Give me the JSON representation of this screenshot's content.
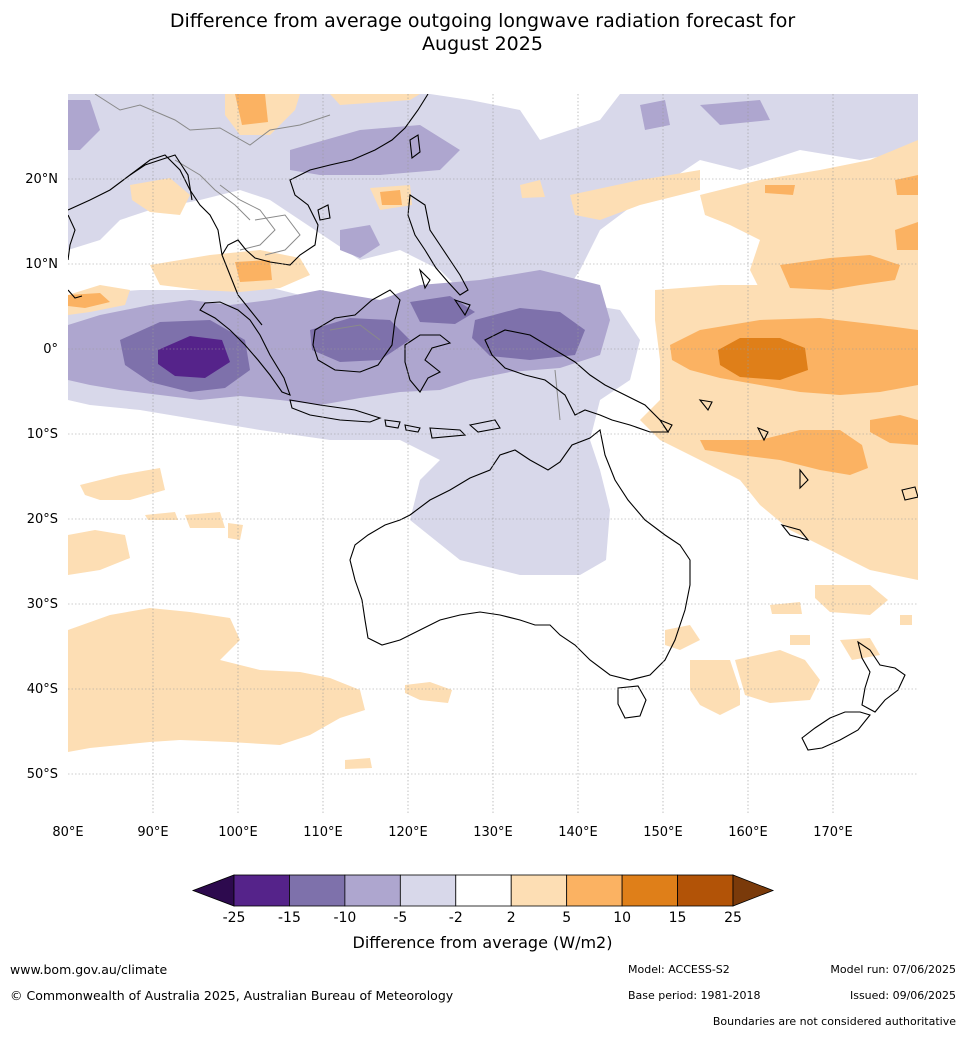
{
  "title_line1": "Difference from average outgoing longwave radiation forecast for",
  "title_line2": "August 2025",
  "lat_labels": [
    "20°N",
    "10°N",
    "0°",
    "10°S",
    "20°S",
    "30°S",
    "40°S",
    "50°S"
  ],
  "lon_labels": [
    "80°E",
    "90°E",
    "100°E",
    "110°E",
    "120°E",
    "130°E",
    "140°E",
    "150°E",
    "160°E",
    "170°E"
  ],
  "colorbar": {
    "ticks": [
      "-25",
      "-15",
      "-10",
      "-5",
      "-2",
      "2",
      "5",
      "10",
      "15",
      "25"
    ],
    "colors": [
      "#2d0a4e",
      "#55238a",
      "#7e71ab",
      "#aea6cf",
      "#d8d8ea",
      "#ffffff",
      "#fddeb4",
      "#fbb262",
      "#df7f19",
      "#b25307",
      "#7a3a0a"
    ],
    "label": "Difference from average (W/m2)"
  },
  "footer": {
    "website": "www.bom.gov.au/climate",
    "copyright": "© Commonwealth of Australia 2025, Australian Bureau of Meteorology",
    "model": "Model: ACCESS-S2",
    "base_period": "Base period: 1981-2018",
    "model_run": "Model run: 07/06/2025",
    "issued": "Issued: 09/06/2025",
    "disclaimer": "Boundaries are not considered authoritative"
  }
}
